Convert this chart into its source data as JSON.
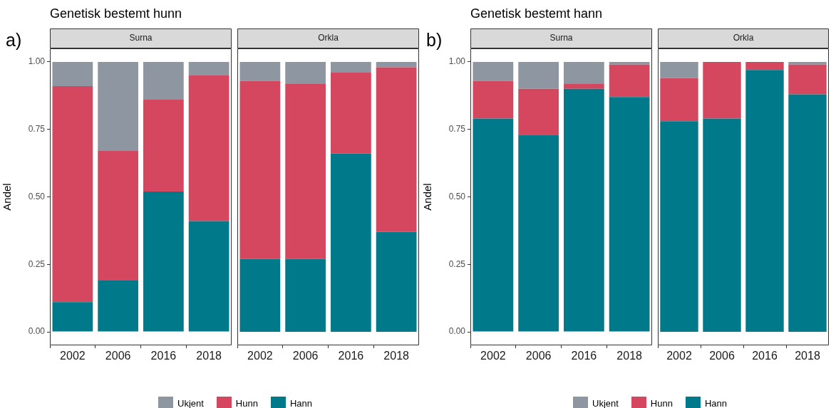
{
  "chart_data": [
    {
      "type": "bar",
      "stacked": true,
      "title": "Genetisk bestemt hunn",
      "subtitle": "Surna",
      "annotations": [
        "a)"
      ],
      "ylabel": "Andel",
      "categories": [
        "2002",
        "2006",
        "2016",
        "2018"
      ],
      "ylim": [
        -0.05,
        1.05
      ],
      "yticks": [
        {
          "value": 0,
          "label": "0.00"
        },
        {
          "value": 0.25,
          "label": "0.25"
        },
        {
          "value": 0.5,
          "label": "0.50"
        },
        {
          "value": 0.75,
          "label": "0.75"
        },
        {
          "value": 1,
          "label": "1.00"
        }
      ],
      "grid": false,
      "legend": "bottom",
      "series": [
        {
          "name": "Hann",
          "color": "#007a8a",
          "values": [
            0.11,
            0.19,
            0.52,
            0.41
          ]
        },
        {
          "name": "Hunn",
          "color": "#d5475e",
          "values": [
            0.8,
            0.48,
            0.34,
            0.54
          ]
        },
        {
          "name": "Ukjent",
          "color": "#8e97a1",
          "values": [
            0.09,
            0.33,
            0.14,
            0.05
          ]
        }
      ]
    },
    {
      "type": "bar",
      "stacked": true,
      "subtitle": "Orkla",
      "categories": [
        "2002",
        "2006",
        "2016",
        "2018"
      ],
      "ylim": [
        -0.05,
        1.05
      ],
      "grid": false,
      "tick_labels": "x",
      "series": [
        {
          "color": "#007a8a",
          "values": [
            0.27,
            0.27,
            0.66,
            0.37
          ]
        },
        {
          "color": "#d5475e",
          "values": [
            0.66,
            0.65,
            0.3,
            0.61
          ]
        },
        {
          "color": "#8e97a1",
          "values": [
            0.07,
            0.08,
            0.04,
            0.02
          ]
        }
      ]
    },
    {
      "type": "bar",
      "stacked": true,
      "title": "Genetisk bestemt hann",
      "subtitle": "Surna",
      "annotations": [
        "b)"
      ],
      "ylabel": "Andel",
      "categories": [
        "2002",
        "2006",
        "2016",
        "2018"
      ],
      "ylim": [
        -0.05,
        1.05
      ],
      "yticks": [
        {
          "value": 0,
          "label": "0.00"
        },
        {
          "value": 0.25,
          "label": "0.25"
        },
        {
          "value": 0.5,
          "label": "0.50"
        },
        {
          "value": 0.75,
          "label": "0.75"
        },
        {
          "value": 1,
          "label": "1.00"
        }
      ],
      "grid": false,
      "legend": "bottom",
      "series": [
        {
          "name": "Hann",
          "color": "#007a8a",
          "values": [
            0.79,
            0.73,
            0.9,
            0.87
          ]
        },
        {
          "name": "Hunn",
          "color": "#d5475e",
          "values": [
            0.14,
            0.17,
            0.02,
            0.12
          ]
        },
        {
          "name": "Ukjent",
          "color": "#8e97a1",
          "values": [
            0.07,
            0.1,
            0.08,
            0.01
          ]
        }
      ]
    },
    {
      "type": "bar",
      "stacked": true,
      "subtitle": "Orkla",
      "categories": [
        "2002",
        "2006",
        "2016",
        "2018"
      ],
      "ylim": [
        -0.05,
        1.05
      ],
      "grid": false,
      "tick_labels": "x",
      "series": [
        {
          "color": "#007a8a",
          "values": [
            0.78,
            0.79,
            0.97,
            0.88
          ]
        },
        {
          "color": "#d5475e",
          "values": [
            0.16,
            0.21,
            0.03,
            0.11
          ]
        },
        {
          "color": "#8e97a1",
          "values": [
            0.06,
            0,
            0,
            0.01
          ]
        }
      ]
    }
  ]
}
